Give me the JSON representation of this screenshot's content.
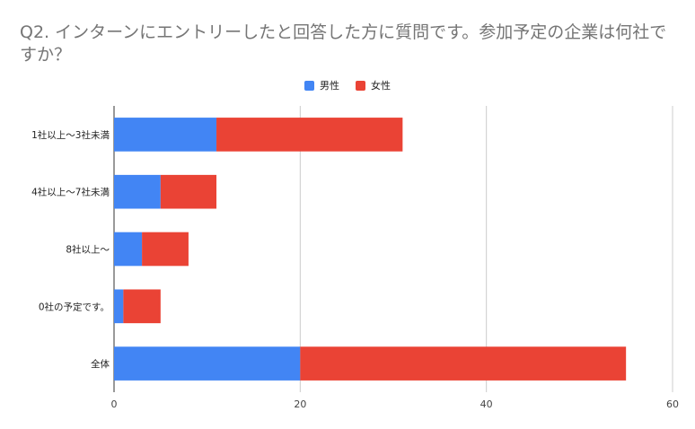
{
  "chart_data": {
    "type": "bar",
    "orientation": "horizontal",
    "stacked": true,
    "title": "Q2. インターンにエントリーしたと回答した方に質問です。参加予定の企業は何社ですか？",
    "categories": [
      "1社以上〜3社未満",
      "4社以上〜7社未満",
      "8社以上〜",
      "0社の予定です。",
      "全体"
    ],
    "series": [
      {
        "name": "男性",
        "color": "#4285f4",
        "values": [
          11,
          5,
          3,
          1,
          20
        ]
      },
      {
        "name": "女性",
        "color": "#ea4335",
        "values": [
          20,
          6,
          5,
          4,
          35
        ]
      }
    ],
    "xlim": [
      0,
      60
    ],
    "xticks": [
      0,
      20,
      40,
      60
    ],
    "grid": true,
    "legend_position": "top-center",
    "xlabel": "",
    "ylabel": ""
  }
}
